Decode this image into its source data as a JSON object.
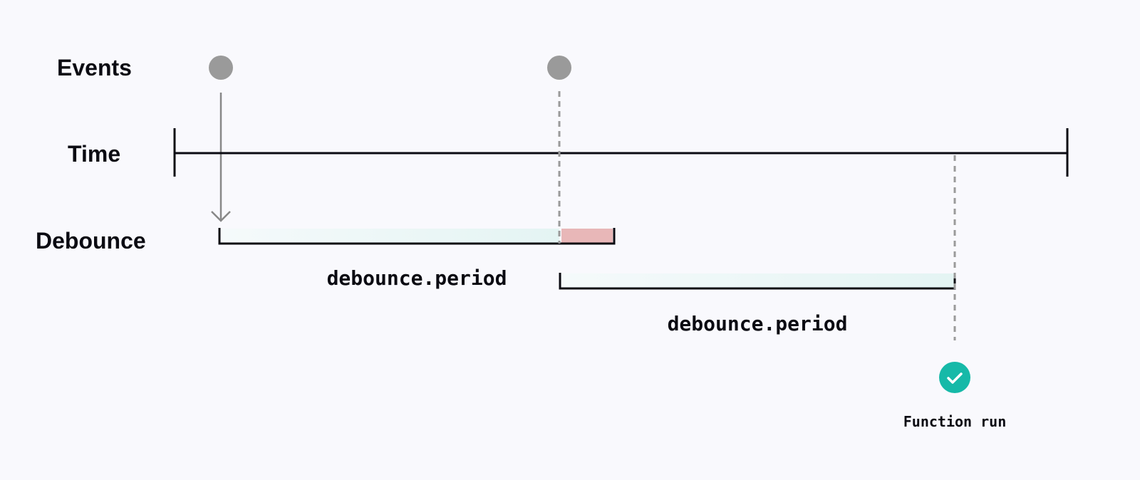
{
  "rows": {
    "events": "Events",
    "time": "Time",
    "debounce": "Debounce"
  },
  "period_label_1": "debounce.period",
  "period_label_2": "debounce.period",
  "function_run_label": "Function run",
  "icons": {
    "event": "circle-dot",
    "trigger": "arrow-down-icon",
    "run": "check-circle-icon"
  },
  "colors": {
    "background": "#f9f9fd",
    "event": "#9a9a9a",
    "period_fill": "#e6f5f4",
    "cancelled": "#e8b7b8",
    "success": "#16b9a8",
    "line": "#0b0b12"
  }
}
